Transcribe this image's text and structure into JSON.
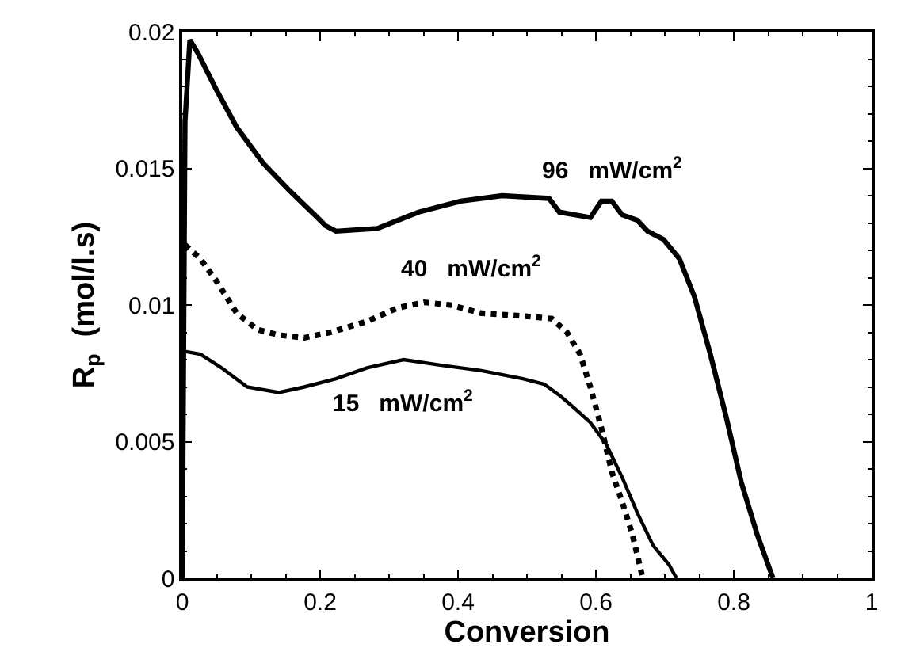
{
  "chart_data": {
    "type": "line",
    "xlabel": "Conversion",
    "ylabel": "R$_{p}$  (mol/l.s)",
    "xlim": [
      0,
      1
    ],
    "xticks": [
      0,
      0.2,
      0.4,
      0.6,
      0.8,
      1
    ],
    "ylim": [
      0,
      0.02
    ],
    "yticks": [
      0,
      0.005,
      0.01,
      0.015,
      0.02
    ],
    "legend": false,
    "marker": "none",
    "series": [
      {
        "name": "96   mW/cm$^{2}$",
        "color": "#000000",
        "line_style": "solid",
        "x": [
          0,
          0.004,
          0.011,
          0.023,
          0.049,
          0.079,
          0.117,
          0.155,
          0.192,
          0.208,
          0.223,
          0.283,
          0.343,
          0.404,
          0.464,
          0.532,
          0.547,
          0.592,
          0.608,
          0.623,
          0.638,
          0.66,
          0.675,
          0.698,
          0.721,
          0.743,
          0.766,
          0.789,
          0.811,
          0.834,
          0.857
        ],
        "values": [
          0,
          0.0167,
          0.0197,
          0.0192,
          0.0179,
          0.0165,
          0.0152,
          0.0142,
          0.0133,
          0.0129,
          0.0127,
          0.0128,
          0.0134,
          0.0138,
          0.014,
          0.0139,
          0.0134,
          0.0132,
          0.0138,
          0.0138,
          0.0133,
          0.0131,
          0.0127,
          0.0124,
          0.0117,
          0.0103,
          0.0082,
          0.0059,
          0.0035,
          0.0016,
          0
        ]
      },
      {
        "name": "40   mW/cm$^{2}$",
        "color": "#000000",
        "line_style": "dotted",
        "x": [
          0.004,
          0.026,
          0.049,
          0.079,
          0.109,
          0.14,
          0.177,
          0.215,
          0.268,
          0.313,
          0.351,
          0.389,
          0.434,
          0.494,
          0.536,
          0.558,
          0.577,
          0.592,
          0.608,
          0.623,
          0.638,
          0.653,
          0.668
        ],
        "values": [
          0.0122,
          0.0117,
          0.0109,
          0.0097,
          0.0091,
          0.0089,
          0.0088,
          0.009,
          0.0094,
          0.0099,
          0.0101,
          0.01,
          0.0097,
          0.0096,
          0.0095,
          0.009,
          0.0082,
          0.007,
          0.0055,
          0.0039,
          0.0028,
          0.0016,
          0
        ]
      },
      {
        "name": "15   mW/cm$^{2}$",
        "color": "#000000",
        "line_style": "solid",
        "x": [
          0.004,
          0.026,
          0.057,
          0.094,
          0.14,
          0.177,
          0.223,
          0.268,
          0.321,
          0.374,
          0.434,
          0.494,
          0.525,
          0.547,
          0.57,
          0.592,
          0.615,
          0.638,
          0.66,
          0.683,
          0.706,
          0.717
        ],
        "values": [
          0.0083,
          0.0082,
          0.0077,
          0.007,
          0.0068,
          0.007,
          0.0073,
          0.0077,
          0.008,
          0.0078,
          0.0076,
          0.0073,
          0.0071,
          0.0067,
          0.0062,
          0.0057,
          0.0049,
          0.0037,
          0.0024,
          0.0012,
          0.0005,
          0
        ]
      }
    ]
  }
}
